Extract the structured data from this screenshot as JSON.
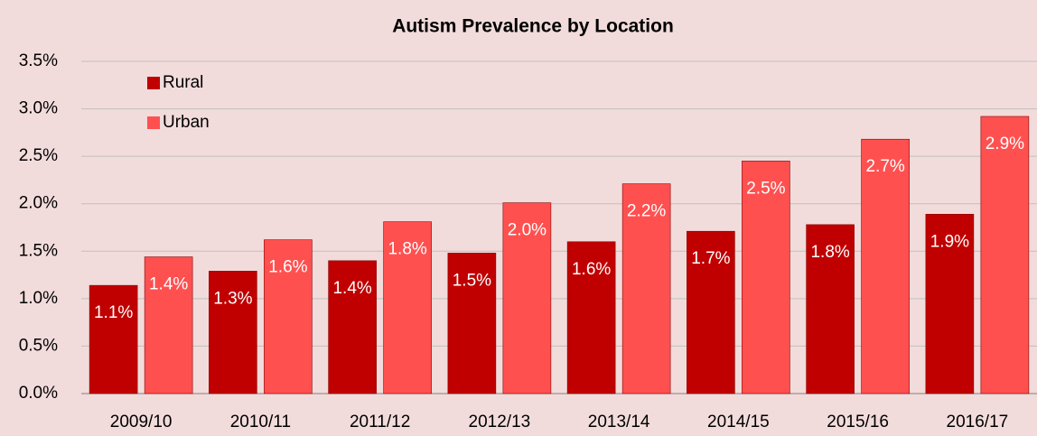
{
  "chart_data": {
    "type": "bar",
    "title": "Autism Prevalence by Location",
    "categories": [
      "2009/10",
      "2010/11",
      "2011/12",
      "2012/13",
      "2013/14",
      "2014/15",
      "2015/16",
      "2016/17"
    ],
    "series": [
      {
        "name": "Rural",
        "color": "#c00000",
        "values": [
          1.14,
          1.29,
          1.4,
          1.48,
          1.6,
          1.71,
          1.78,
          1.89
        ],
        "value_labels": [
          "1.1%",
          "1.3%",
          "1.4%",
          "1.5%",
          "1.6%",
          "1.7%",
          "1.8%",
          "1.9%"
        ]
      },
      {
        "name": "Urban",
        "color": "#ff5050",
        "values": [
          1.44,
          1.62,
          1.81,
          2.01,
          2.21,
          2.45,
          2.68,
          2.92
        ],
        "value_labels": [
          "1.4%",
          "1.6%",
          "1.8%",
          "2.0%",
          "2.2%",
          "2.5%",
          "2.7%",
          "2.9%"
        ]
      }
    ],
    "ylim": [
      0,
      3.5
    ],
    "yticks": [
      {
        "value": 0,
        "label": "0.0%"
      },
      {
        "value": 0.5,
        "label": "0.5%"
      },
      {
        "value": 1,
        "label": "1.0%"
      },
      {
        "value": 1.5,
        "label": "1.5%"
      },
      {
        "value": 2,
        "label": "2.0%"
      },
      {
        "value": 2.5,
        "label": "2.5%"
      },
      {
        "value": 3,
        "label": "3.0%"
      },
      {
        "value": 3.5,
        "label": "3.5%"
      }
    ],
    "grid": true,
    "legend": "upper left"
  }
}
